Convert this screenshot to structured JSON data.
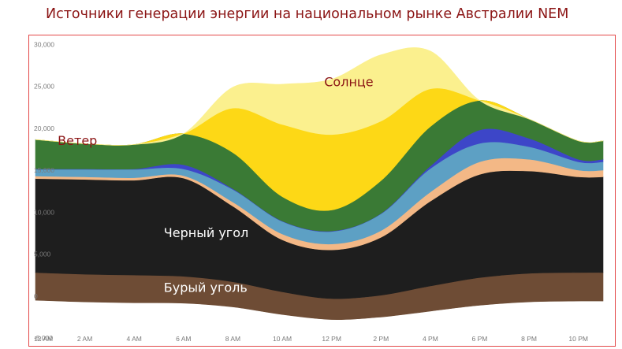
{
  "title": "Источники генерации энергии на национальном рынке Австралии NEM",
  "chart_data": {
    "type": "area",
    "stacked": true,
    "x": [
      "12 AM",
      "2 AM",
      "4 AM",
      "6 AM",
      "8 AM",
      "10 AM",
      "12 PM",
      "2 PM",
      "4 PM",
      "6 PM",
      "8 PM",
      "10 PM"
    ],
    "x_hours": [
      0,
      2,
      4,
      6,
      8,
      10,
      12,
      14,
      16,
      18,
      20,
      22
    ],
    "ylim": [
      -5000,
      32000
    ],
    "yticks": [
      -5000,
      0,
      5000,
      10000,
      15000,
      20000,
      25000,
      30000
    ],
    "ytick_labels": [
      "-5,000",
      "0",
      "5,000",
      "10,000",
      "15,000",
      "20,000",
      "25,000",
      "30,000"
    ],
    "grid": false,
    "baseline": [
      -500,
      -700,
      -800,
      -850,
      -1300,
      -2200,
      -2800,
      -2500,
      -1800,
      -1100,
      -700,
      -600
    ],
    "series": [
      {
        "key": "brown_coal",
        "name": "Бурый уголь",
        "color": "#6e4c35",
        "values": [
          3300,
          3300,
          3300,
          3200,
          3000,
          2700,
          2500,
          2600,
          3000,
          3300,
          3400,
          3400
        ]
      },
      {
        "key": "black_coal",
        "name": "Черный уголь",
        "color": "#1e1e1e",
        "values": [
          11200,
          11300,
          11300,
          11700,
          9000,
          6200,
          5800,
          6900,
          10100,
          12300,
          12200,
          11400
        ]
      },
      {
        "key": "gas",
        "name": "",
        "color": "#f3b886",
        "values": [
          300,
          300,
          300,
          300,
          500,
          700,
          700,
          800,
          1100,
          1500,
          1400,
          800
        ]
      },
      {
        "key": "hydro",
        "name": "",
        "color": "#5da0c4",
        "values": [
          800,
          900,
          1000,
          800,
          1500,
          1500,
          1500,
          2000,
          2800,
          2200,
          1500,
          1000
        ]
      },
      {
        "key": "battery",
        "name": "",
        "color": "#3d46c8",
        "values": [
          50,
          50,
          50,
          500,
          100,
          50,
          50,
          50,
          300,
          1600,
          1000,
          300
        ]
      },
      {
        "key": "wind",
        "name": "Ветер",
        "color": "#3a7a35",
        "values": [
          3500,
          3000,
          2900,
          3700,
          4300,
          2900,
          2500,
          3900,
          4700,
          3500,
          2300,
          2200
        ]
      },
      {
        "key": "rooftop_solar_low",
        "name": "",
        "color": "#fdd816",
        "values": [
          0,
          0,
          0,
          0,
          5300,
          8600,
          9000,
          7100,
          4500,
          0,
          0,
          0
        ]
      },
      {
        "key": "solar",
        "name": "Солнце",
        "color": "#fbf08e",
        "values": [
          0,
          0,
          0,
          0,
          2500,
          4800,
          6600,
          7900,
          4500,
          0,
          0,
          0
        ]
      }
    ],
    "annotations": [
      {
        "text": "Солнце",
        "x": 11.7,
        "y": 25000,
        "color": "#8b1414"
      },
      {
        "text": "Ветер",
        "x": 0.9,
        "y": 18000,
        "color": "#8b1414"
      },
      {
        "text": "Черный угол",
        "x": 5.2,
        "y": 7000,
        "color": "#ffffff"
      },
      {
        "text": "Бурый уголь",
        "x": 5.2,
        "y": 500,
        "color": "#ffffff"
      }
    ]
  }
}
